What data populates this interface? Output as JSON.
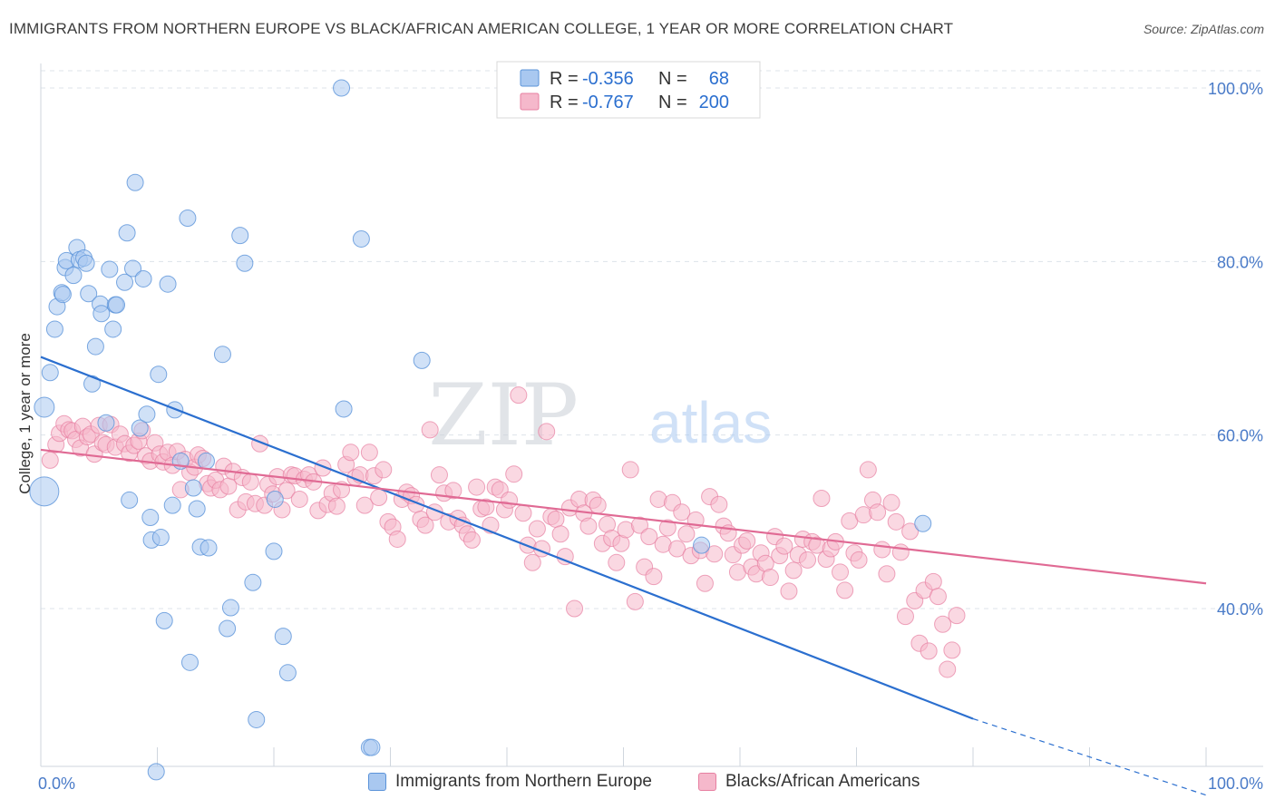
{
  "header": {
    "title": "IMMIGRANTS FROM NORTHERN EUROPE VS BLACK/AFRICAN AMERICAN COLLEGE, 1 YEAR OR MORE CORRELATION CHART",
    "source": "Source: ZipAtlas.com"
  },
  "watermark": {
    "zip": "ZIP",
    "atlas": "atlas"
  },
  "colors": {
    "blue_fill": "#a9c8f0",
    "blue_stroke": "#5b93d9",
    "blue_line": "#2b6fcf",
    "pink_fill": "#f5b8cb",
    "pink_stroke": "#e77fa1",
    "pink_line": "#e06a94",
    "axis_text": "#4a7bc8",
    "grid": "#dde3ea"
  },
  "legend_top": {
    "rows": [
      {
        "r_label": "R = ",
        "r_value": "-0.356",
        "n_label": "N = ",
        "n_value": "68"
      },
      {
        "r_label": "R = ",
        "r_value": "-0.767",
        "n_label": "N = ",
        "n_value": "200"
      }
    ]
  },
  "legend_bottom": {
    "items": [
      "Immigrants from Northern Europe",
      "Blacks/African Americans"
    ]
  },
  "chart_data": {
    "type": "scatter",
    "title": "IMMIGRANTS FROM NORTHERN EUROPE VS BLACK/AFRICAN AMERICAN COLLEGE, 1 YEAR OR MORE CORRELATION CHART",
    "xlabel": "",
    "ylabel": "College, 1 year or more",
    "xlim": [
      0,
      100
    ],
    "ylim": [
      20,
      102
    ],
    "x_tick_labels": [
      "0.0%",
      "100.0%"
    ],
    "y_tick_labels": [
      "100.0%",
      "80.0%",
      "60.0%",
      "40.0%"
    ],
    "y_ticks": [
      100,
      80,
      60,
      40
    ],
    "grid": true,
    "legend_position": "top-center",
    "series": [
      {
        "name": "Immigrants from Northern Europe",
        "color": "#a9c8f0",
        "R": -0.356,
        "N": 68,
        "trend": {
          "x": [
            0,
            80
          ],
          "y": [
            69.0,
            27.3
          ],
          "dashed_to": [
            100,
            18.5
          ]
        },
        "points": [
          [
            0.3,
            53.5
          ],
          [
            0.3,
            63.2
          ],
          [
            0.8,
            67.2
          ],
          [
            1.2,
            72.2
          ],
          [
            1.4,
            74.8
          ],
          [
            1.8,
            76.4
          ],
          [
            1.9,
            76.2
          ],
          [
            2.1,
            79.3
          ],
          [
            2.2,
            80.1
          ],
          [
            2.8,
            78.4
          ],
          [
            3.1,
            81.6
          ],
          [
            3.3,
            80.2
          ],
          [
            3.7,
            80.4
          ],
          [
            3.9,
            79.8
          ],
          [
            4.1,
            76.3
          ],
          [
            4.4,
            65.9
          ],
          [
            4.7,
            70.2
          ],
          [
            5.1,
            75.1
          ],
          [
            5.2,
            74.0
          ],
          [
            5.6,
            61.4
          ],
          [
            5.9,
            79.1
          ],
          [
            6.2,
            72.2
          ],
          [
            6.4,
            75.0
          ],
          [
            6.5,
            75.0
          ],
          [
            7.2,
            77.6
          ],
          [
            7.4,
            83.3
          ],
          [
            7.6,
            52.5
          ],
          [
            7.9,
            79.2
          ],
          [
            8.1,
            89.1
          ],
          [
            8.5,
            60.8
          ],
          [
            8.8,
            78.0
          ],
          [
            9.1,
            62.4
          ],
          [
            9.4,
            50.5
          ],
          [
            9.5,
            47.9
          ],
          [
            9.9,
            21.2
          ],
          [
            10.1,
            67.0
          ],
          [
            10.3,
            48.2
          ],
          [
            10.6,
            38.6
          ],
          [
            10.9,
            77.4
          ],
          [
            11.3,
            51.9
          ],
          [
            11.5,
            62.9
          ],
          [
            12.0,
            57.0
          ],
          [
            12.6,
            85.0
          ],
          [
            12.8,
            33.8
          ],
          [
            13.1,
            53.9
          ],
          [
            13.4,
            51.5
          ],
          [
            13.7,
            47.1
          ],
          [
            14.2,
            57.0
          ],
          [
            14.4,
            47.0
          ],
          [
            15.6,
            69.3
          ],
          [
            16.0,
            37.7
          ],
          [
            16.3,
            40.1
          ],
          [
            17.1,
            83.0
          ],
          [
            17.5,
            79.8
          ],
          [
            18.2,
            43.0
          ],
          [
            18.5,
            27.2
          ],
          [
            20.0,
            46.6
          ],
          [
            20.1,
            52.6
          ],
          [
            20.8,
            36.8
          ],
          [
            21.2,
            32.6
          ],
          [
            25.8,
            100.0
          ],
          [
            26.0,
            63.0
          ],
          [
            27.5,
            82.6
          ],
          [
            28.2,
            24.0
          ],
          [
            28.4,
            24.0
          ],
          [
            32.7,
            68.6
          ],
          [
            56.7,
            47.3
          ],
          [
            75.7,
            49.8
          ]
        ]
      },
      {
        "name": "Blacks/African Americans",
        "color": "#f5b8cb",
        "R": -0.767,
        "N": 200,
        "trend": {
          "x": [
            0,
            100
          ],
          "y": [
            58.3,
            42.9
          ]
        },
        "points": [
          [
            0.8,
            57.1
          ],
          [
            1.3,
            58.9
          ],
          [
            1.6,
            60.2
          ],
          [
            2.0,
            61.3
          ],
          [
            2.4,
            60.6
          ],
          [
            2.7,
            60.5
          ],
          [
            3.0,
            59.5
          ],
          [
            3.4,
            58.5
          ],
          [
            3.6,
            61.0
          ],
          [
            4.0,
            59.8
          ],
          [
            4.3,
            60.1
          ],
          [
            4.6,
            57.8
          ],
          [
            5.0,
            61.1
          ],
          [
            5.3,
            59.1
          ],
          [
            5.6,
            58.9
          ],
          [
            6.0,
            61.2
          ],
          [
            6.4,
            58.6
          ],
          [
            6.8,
            60.1
          ],
          [
            7.2,
            59.0
          ],
          [
            7.6,
            57.9
          ],
          [
            8.0,
            58.8
          ],
          [
            8.4,
            59.3
          ],
          [
            8.7,
            60.5
          ],
          [
            9.0,
            57.6
          ],
          [
            9.4,
            57.0
          ],
          [
            9.8,
            59.1
          ],
          [
            10.2,
            57.8
          ],
          [
            10.5,
            56.9
          ],
          [
            10.9,
            58.0
          ],
          [
            11.3,
            56.5
          ],
          [
            11.7,
            58.1
          ],
          [
            12.0,
            53.7
          ],
          [
            12.4,
            57.2
          ],
          [
            12.8,
            55.7
          ],
          [
            13.2,
            56.3
          ],
          [
            13.5,
            57.7
          ],
          [
            13.9,
            57.3
          ],
          [
            14.3,
            54.4
          ],
          [
            14.6,
            53.9
          ],
          [
            15.0,
            54.8
          ],
          [
            15.4,
            53.7
          ],
          [
            15.7,
            56.4
          ],
          [
            16.1,
            54.1
          ],
          [
            16.5,
            55.8
          ],
          [
            16.9,
            51.4
          ],
          [
            17.3,
            55.1
          ],
          [
            17.6,
            52.3
          ],
          [
            18.0,
            54.6
          ],
          [
            18.4,
            52.1
          ],
          [
            18.8,
            59.0
          ],
          [
            19.2,
            51.9
          ],
          [
            19.5,
            54.3
          ],
          [
            19.9,
            53.2
          ],
          [
            20.3,
            55.2
          ],
          [
            20.7,
            51.4
          ],
          [
            21.1,
            53.6
          ],
          [
            21.5,
            55.4
          ],
          [
            21.8,
            55.3
          ],
          [
            22.2,
            52.6
          ],
          [
            22.6,
            54.9
          ],
          [
            23.0,
            55.4
          ],
          [
            23.4,
            54.6
          ],
          [
            23.8,
            51.3
          ],
          [
            24.2,
            56.2
          ],
          [
            24.6,
            52.0
          ],
          [
            25.0,
            53.3
          ],
          [
            25.4,
            51.8
          ],
          [
            25.8,
            53.7
          ],
          [
            26.2,
            56.6
          ],
          [
            26.6,
            58.0
          ],
          [
            27.0,
            55.1
          ],
          [
            27.4,
            55.4
          ],
          [
            27.8,
            51.9
          ],
          [
            28.2,
            58.0
          ],
          [
            28.6,
            55.3
          ],
          [
            29.0,
            52.8
          ],
          [
            29.4,
            56.0
          ],
          [
            29.8,
            50.0
          ],
          [
            30.2,
            49.4
          ],
          [
            30.6,
            48.0
          ],
          [
            31.0,
            52.6
          ],
          [
            31.4,
            53.4
          ],
          [
            31.8,
            53.0
          ],
          [
            32.2,
            52.0
          ],
          [
            32.6,
            50.3
          ],
          [
            33.0,
            49.6
          ],
          [
            33.4,
            60.6
          ],
          [
            33.8,
            51.1
          ],
          [
            34.2,
            55.4
          ],
          [
            34.6,
            53.3
          ],
          [
            35.0,
            50.0
          ],
          [
            35.4,
            53.6
          ],
          [
            35.8,
            50.4
          ],
          [
            36.2,
            49.6
          ],
          [
            36.6,
            48.6
          ],
          [
            37.0,
            47.9
          ],
          [
            37.4,
            54.0
          ],
          [
            37.8,
            51.5
          ],
          [
            38.2,
            51.7
          ],
          [
            38.6,
            49.6
          ],
          [
            39.0,
            54.0
          ],
          [
            39.4,
            53.7
          ],
          [
            39.8,
            51.4
          ],
          [
            40.2,
            52.5
          ],
          [
            40.6,
            55.5
          ],
          [
            41.0,
            64.6
          ],
          [
            41.4,
            51.0
          ],
          [
            41.8,
            47.3
          ],
          [
            42.2,
            45.3
          ],
          [
            42.6,
            49.2
          ],
          [
            43.0,
            46.9
          ],
          [
            43.4,
            60.4
          ],
          [
            43.8,
            50.6
          ],
          [
            44.2,
            50.3
          ],
          [
            44.6,
            48.6
          ],
          [
            45.0,
            46.0
          ],
          [
            45.4,
            51.6
          ],
          [
            45.8,
            40.0
          ],
          [
            46.2,
            52.6
          ],
          [
            46.6,
            51.0
          ],
          [
            47.0,
            49.5
          ],
          [
            47.4,
            52.5
          ],
          [
            47.8,
            51.9
          ],
          [
            48.2,
            47.5
          ],
          [
            48.6,
            49.7
          ],
          [
            49.0,
            48.1
          ],
          [
            49.4,
            45.3
          ],
          [
            49.8,
            47.5
          ],
          [
            50.2,
            49.1
          ],
          [
            50.6,
            56.0
          ],
          [
            51.0,
            40.8
          ],
          [
            51.4,
            49.6
          ],
          [
            51.8,
            44.8
          ],
          [
            52.2,
            48.3
          ],
          [
            52.6,
            43.7
          ],
          [
            53.0,
            52.6
          ],
          [
            53.4,
            47.4
          ],
          [
            53.8,
            49.3
          ],
          [
            54.2,
            52.2
          ],
          [
            54.6,
            46.9
          ],
          [
            55.0,
            51.1
          ],
          [
            55.4,
            48.6
          ],
          [
            55.8,
            46.1
          ],
          [
            56.2,
            50.2
          ],
          [
            56.6,
            46.7
          ],
          [
            57.0,
            42.9
          ],
          [
            57.4,
            52.9
          ],
          [
            57.8,
            46.3
          ],
          [
            58.2,
            52.0
          ],
          [
            58.6,
            49.5
          ],
          [
            59.0,
            48.7
          ],
          [
            59.4,
            46.2
          ],
          [
            59.8,
            44.2
          ],
          [
            60.2,
            47.3
          ],
          [
            60.6,
            47.8
          ],
          [
            61.0,
            44.8
          ],
          [
            61.4,
            44.0
          ],
          [
            61.8,
            46.4
          ],
          [
            62.2,
            45.2
          ],
          [
            62.6,
            43.6
          ],
          [
            63.0,
            48.3
          ],
          [
            63.4,
            46.1
          ],
          [
            63.8,
            47.2
          ],
          [
            64.2,
            42.0
          ],
          [
            64.6,
            44.4
          ],
          [
            65.0,
            46.2
          ],
          [
            65.4,
            48.0
          ],
          [
            65.8,
            45.6
          ],
          [
            66.2,
            47.7
          ],
          [
            66.6,
            47.3
          ],
          [
            67.0,
            52.7
          ],
          [
            67.4,
            45.7
          ],
          [
            67.8,
            46.9
          ],
          [
            68.2,
            47.7
          ],
          [
            68.6,
            44.2
          ],
          [
            69.0,
            42.1
          ],
          [
            69.4,
            50.1
          ],
          [
            69.8,
            46.4
          ],
          [
            70.2,
            45.6
          ],
          [
            70.6,
            50.8
          ],
          [
            71.0,
            56.0
          ],
          [
            71.4,
            52.5
          ],
          [
            71.8,
            51.1
          ],
          [
            72.2,
            46.8
          ],
          [
            72.6,
            44.0
          ],
          [
            73.0,
            52.2
          ],
          [
            73.4,
            50.0
          ],
          [
            73.8,
            46.5
          ],
          [
            74.2,
            39.1
          ],
          [
            74.6,
            48.9
          ],
          [
            75.0,
            40.9
          ],
          [
            75.4,
            36.0
          ],
          [
            75.8,
            42.1
          ],
          [
            76.2,
            35.1
          ],
          [
            76.6,
            43.1
          ],
          [
            77.0,
            41.4
          ],
          [
            77.4,
            38.2
          ],
          [
            77.8,
            33.0
          ],
          [
            78.2,
            35.2
          ],
          [
            78.6,
            39.2
          ]
        ]
      }
    ]
  }
}
